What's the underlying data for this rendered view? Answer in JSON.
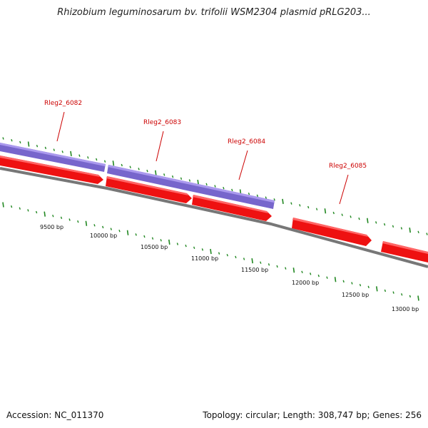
{
  "title": "Rhizobium leguminosarum bv. trifolii WSM2304 plasmid pRLG203...",
  "footer": {
    "accession": "Accession: NC_011370",
    "summary": "Topology: circular; Length: 308,747 bp; Genes: 256"
  },
  "colors": {
    "forward_gene": "#ee1111",
    "forward_gene_highlight": "#ff6666",
    "purple_feature": "#7766cc",
    "purple_feature_highlight": "#aa99ee",
    "backbone": "#777777",
    "tick": "#228822",
    "label": "#cc0000"
  },
  "genes": [
    {
      "id": "Rleg2_6082",
      "label": "Rleg2_6082"
    },
    {
      "id": "Rleg2_6083",
      "label": "Rleg2_6083"
    },
    {
      "id": "Rleg2_6084",
      "label": "Rleg2_6084"
    },
    {
      "id": "Rleg2_6085",
      "label": "Rleg2_6085"
    }
  ],
  "scale_labels": [
    "9500 bp",
    "10000 bp",
    "10500 bp",
    "11000 bp",
    "11500 bp",
    "12000 bp",
    "12500 bp",
    "13000 bp"
  ]
}
